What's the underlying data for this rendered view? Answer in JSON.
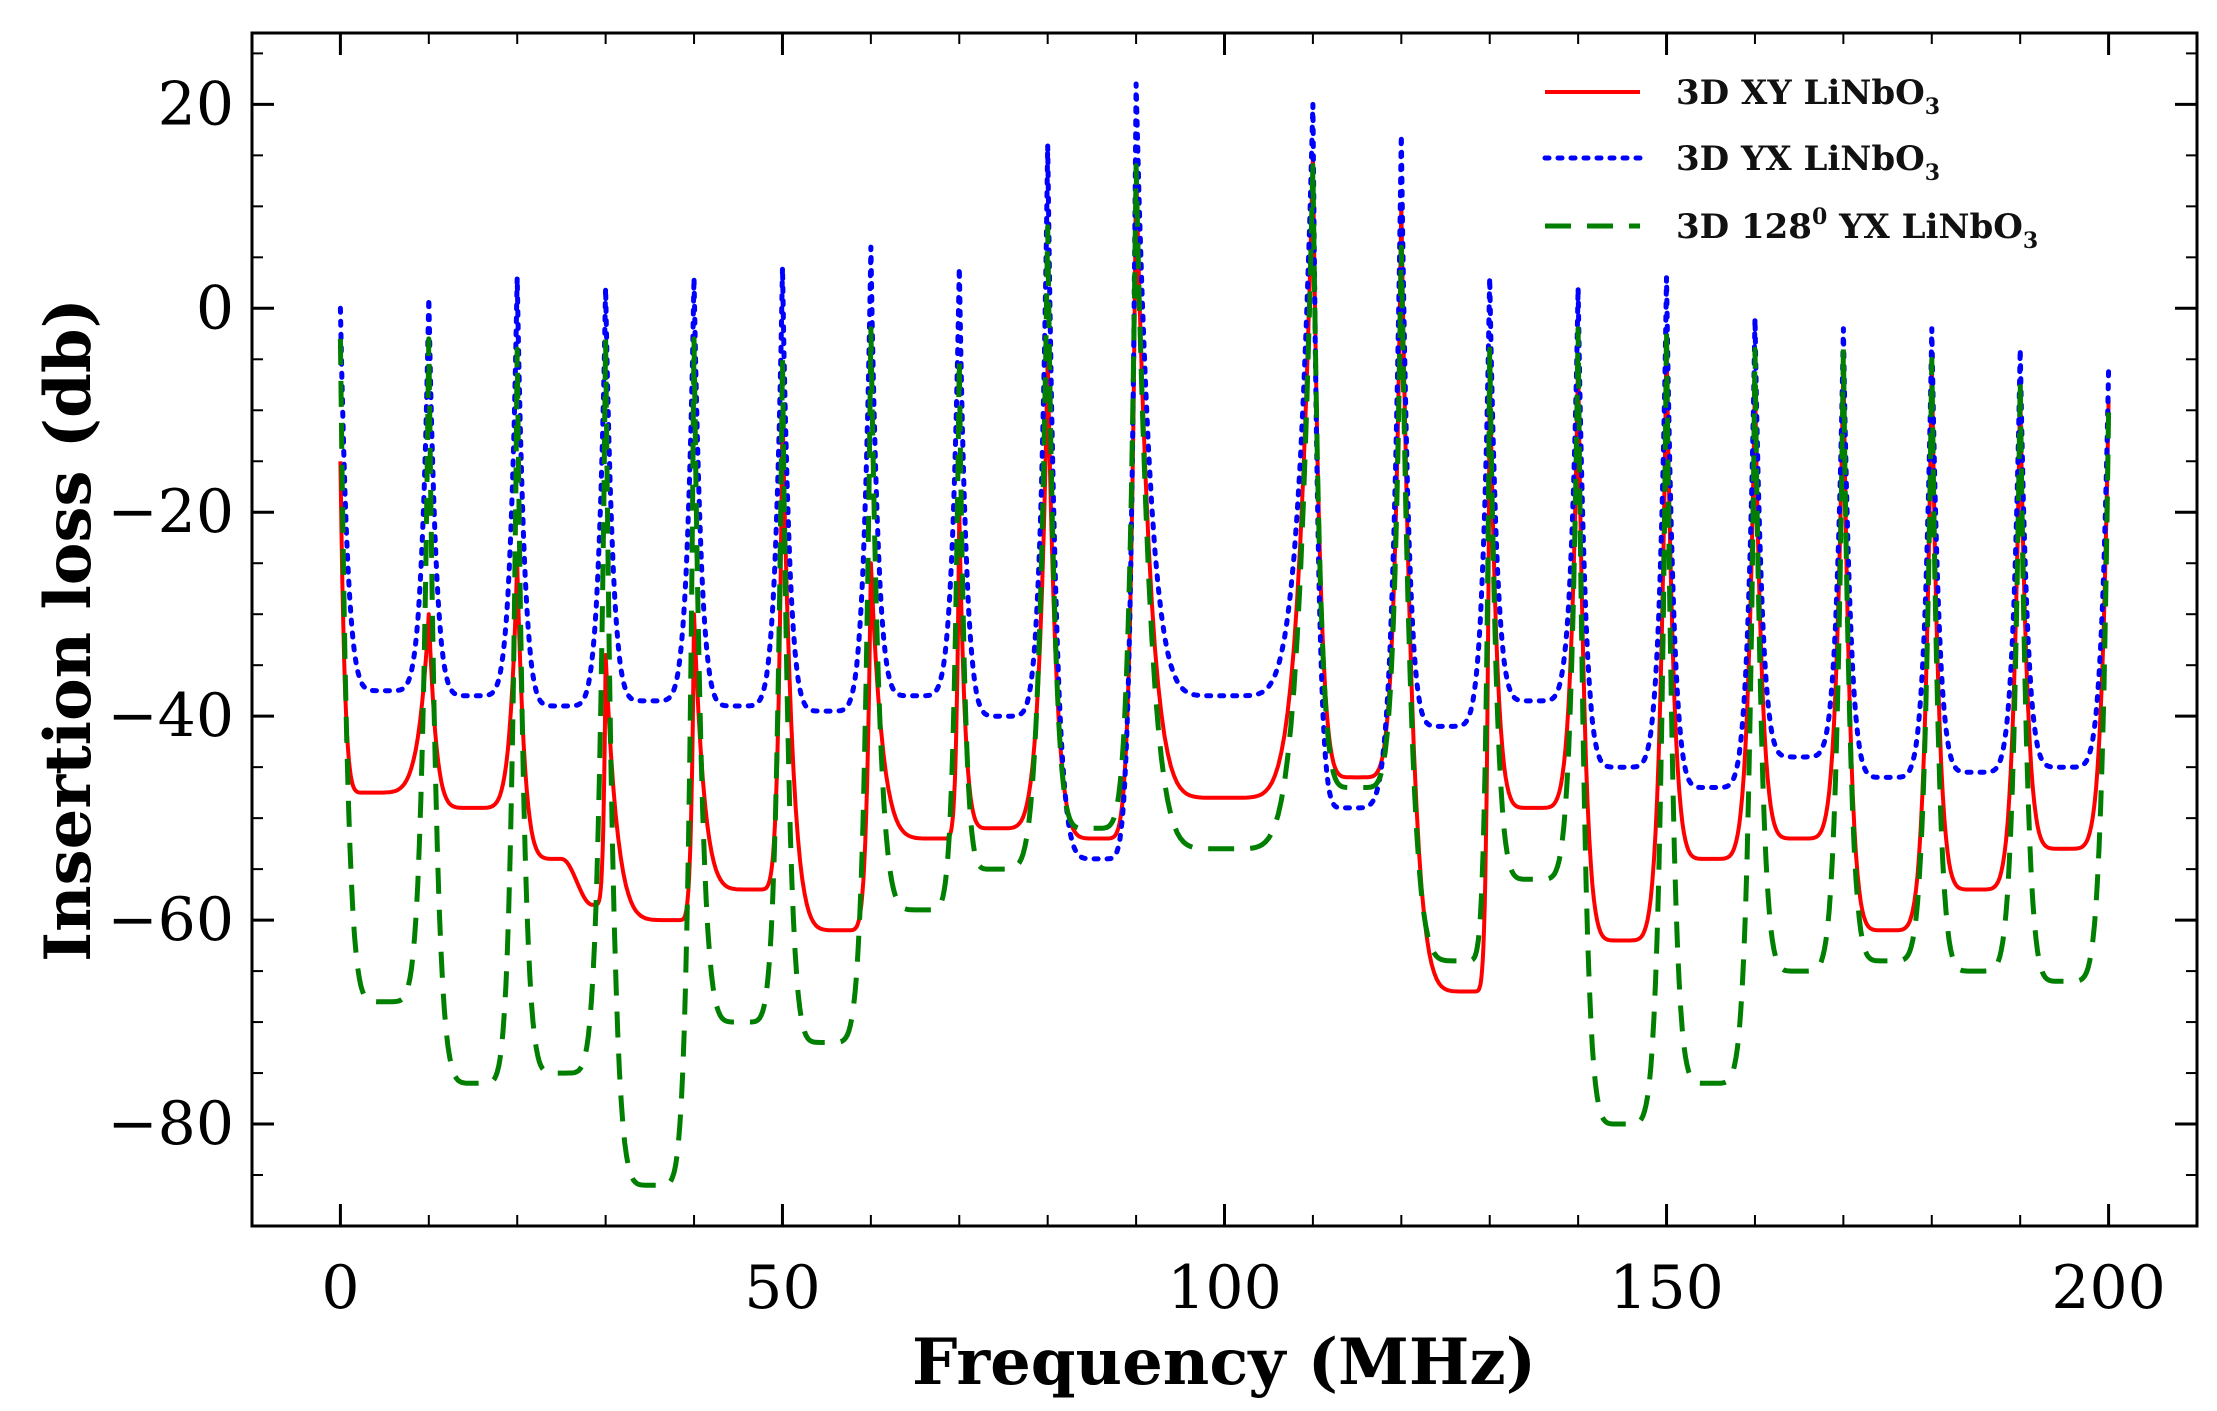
{
  "chart_data": {
    "type": "line",
    "title": "",
    "xlabel": "Frequency (MHz)",
    "ylabel": "Insertion loss (db)",
    "xlim": [
      -10,
      210
    ],
    "ylim": [
      -90,
      27
    ],
    "xticks": [
      {
        "value": 0,
        "label": "0"
      },
      {
        "value": 50,
        "label": "50"
      },
      {
        "value": 100,
        "label": "100"
      },
      {
        "value": 150,
        "label": "150"
      },
      {
        "value": 200,
        "label": "200"
      }
    ],
    "yticks": [
      {
        "value": 20,
        "label": "20"
      },
      {
        "value": 0,
        "label": "0"
      },
      {
        "value": -20,
        "label": "−20"
      },
      {
        "value": -40,
        "label": "−40"
      },
      {
        "value": -60,
        "label": "−60"
      },
      {
        "value": -80,
        "label": "−80"
      }
    ],
    "legend_position": "top-right",
    "series": [
      {
        "name": "3D XY LiNbO",
        "name_subscript": "3",
        "name_superscript": "",
        "name_suffix": "",
        "color": "#ff0000",
        "style": "solid",
        "peaks": [
          {
            "x": 0,
            "y": -15
          },
          {
            "x": 10,
            "y": -30
          },
          {
            "x": 20,
            "y": -25
          },
          {
            "x": 30,
            "y": -34
          },
          {
            "x": 40,
            "y": -30
          },
          {
            "x": 50,
            "y": -10
          },
          {
            "x": 60,
            "y": -25
          },
          {
            "x": 70,
            "y": -20
          },
          {
            "x": 80,
            "y": -5
          },
          {
            "x": 90,
            "y": 14
          },
          {
            "x": 110,
            "y": 15
          },
          {
            "x": 120,
            "y": 10
          },
          {
            "x": 130,
            "y": -5
          },
          {
            "x": 140,
            "y": -5
          },
          {
            "x": 150,
            "y": -3
          },
          {
            "x": 160,
            "y": -7
          },
          {
            "x": 170,
            "y": -5
          },
          {
            "x": 180,
            "y": -5
          },
          {
            "x": 190,
            "y": -8
          },
          {
            "x": 200,
            "y": -9
          }
        ],
        "valleys": [
          {
            "x": 3,
            "y": -47.5
          },
          {
            "x": 15,
            "y": -49
          },
          {
            "x": 25,
            "y": -54
          },
          {
            "x": 28.5,
            "y": -58.5
          },
          {
            "x": 38,
            "y": -60
          },
          {
            "x": 47,
            "y": -57
          },
          {
            "x": 57,
            "y": -61
          },
          {
            "x": 68,
            "y": -52
          },
          {
            "x": 74,
            "y": -51
          },
          {
            "x": 86,
            "y": -52
          },
          {
            "x": 100,
            "y": -48
          },
          {
            "x": 115,
            "y": -46
          },
          {
            "x": 128,
            "y": -67
          },
          {
            "x": 135,
            "y": -49
          },
          {
            "x": 145,
            "y": -62
          },
          {
            "x": 155,
            "y": -54
          },
          {
            "x": 165,
            "y": -52
          },
          {
            "x": 175,
            "y": -61
          },
          {
            "x": 185,
            "y": -57
          },
          {
            "x": 195,
            "y": -53
          }
        ]
      },
      {
        "name": "3D YX LiNbO",
        "name_subscript": "3",
        "name_superscript": "",
        "name_suffix": "",
        "color": "#0000ff",
        "style": "dotted",
        "peaks": [
          {
            "x": 0,
            "y": 0
          },
          {
            "x": 10,
            "y": 1
          },
          {
            "x": 20,
            "y": 3
          },
          {
            "x": 30,
            "y": 2
          },
          {
            "x": 40,
            "y": 3
          },
          {
            "x": 50,
            "y": 4
          },
          {
            "x": 60,
            "y": 6
          },
          {
            "x": 70,
            "y": 4
          },
          {
            "x": 80,
            "y": 16
          },
          {
            "x": 90,
            "y": 22
          },
          {
            "x": 110,
            "y": 20
          },
          {
            "x": 120,
            "y": 17
          },
          {
            "x": 130,
            "y": 3
          },
          {
            "x": 140,
            "y": 2
          },
          {
            "x": 150,
            "y": 3
          },
          {
            "x": 160,
            "y": -1
          },
          {
            "x": 170,
            "y": -2
          },
          {
            "x": 180,
            "y": -2
          },
          {
            "x": 190,
            "y": -4
          },
          {
            "x": 200,
            "y": -6
          }
        ],
        "valleys": [
          {
            "x": 5,
            "y": -37.5
          },
          {
            "x": 15,
            "y": -38
          },
          {
            "x": 25,
            "y": -39
          },
          {
            "x": 35,
            "y": -38.5
          },
          {
            "x": 45,
            "y": -39
          },
          {
            "x": 55,
            "y": -39.5
          },
          {
            "x": 65,
            "y": -38
          },
          {
            "x": 75,
            "y": -40
          },
          {
            "x": 86,
            "y": -54
          },
          {
            "x": 100,
            "y": -38
          },
          {
            "x": 114,
            "y": -49
          },
          {
            "x": 125,
            "y": -41
          },
          {
            "x": 135,
            "y": -38.5
          },
          {
            "x": 145,
            "y": -45
          },
          {
            "x": 155,
            "y": -47
          },
          {
            "x": 165,
            "y": -44
          },
          {
            "x": 175,
            "y": -46
          },
          {
            "x": 185,
            "y": -45.5
          },
          {
            "x": 195,
            "y": -45
          }
        ]
      },
      {
        "name": "3D 128",
        "name_subscript": "3",
        "name_superscript": "0",
        "name_suffix": " YX LiNbO",
        "color": "#007f00",
        "style": "dashed",
        "peaks": [
          {
            "x": 0,
            "y": -3
          },
          {
            "x": 10,
            "y": -3
          },
          {
            "x": 20,
            "y": -4
          },
          {
            "x": 30,
            "y": -3
          },
          {
            "x": 40,
            "y": -3
          },
          {
            "x": 50,
            "y": -5
          },
          {
            "x": 60,
            "y": -2
          },
          {
            "x": 70,
            "y": -5
          },
          {
            "x": 80,
            "y": 8
          },
          {
            "x": 90,
            "y": 14
          },
          {
            "x": 110,
            "y": 14
          },
          {
            "x": 120,
            "y": 6
          },
          {
            "x": 130,
            "y": -4
          },
          {
            "x": 140,
            "y": -2
          },
          {
            "x": 150,
            "y": -2
          },
          {
            "x": 160,
            "y": -4
          },
          {
            "x": 170,
            "y": -4
          },
          {
            "x": 180,
            "y": -5
          },
          {
            "x": 190,
            "y": -7
          },
          {
            "x": 200,
            "y": -10
          }
        ],
        "valleys": [
          {
            "x": 5,
            "y": -68
          },
          {
            "x": 15.5,
            "y": -76
          },
          {
            "x": 25,
            "y": -75
          },
          {
            "x": 35.5,
            "y": -86
          },
          {
            "x": 45.5,
            "y": -70
          },
          {
            "x": 55,
            "y": -72
          },
          {
            "x": 66,
            "y": -59
          },
          {
            "x": 74,
            "y": -55
          },
          {
            "x": 85,
            "y": -51
          },
          {
            "x": 100,
            "y": -53
          },
          {
            "x": 115,
            "y": -47
          },
          {
            "x": 127,
            "y": -64
          },
          {
            "x": 135,
            "y": -56
          },
          {
            "x": 145,
            "y": -80
          },
          {
            "x": 155,
            "y": -76
          },
          {
            "x": 165,
            "y": -65
          },
          {
            "x": 175,
            "y": -64
          },
          {
            "x": 185,
            "y": -65
          },
          {
            "x": 195,
            "y": -66
          }
        ]
      }
    ]
  }
}
